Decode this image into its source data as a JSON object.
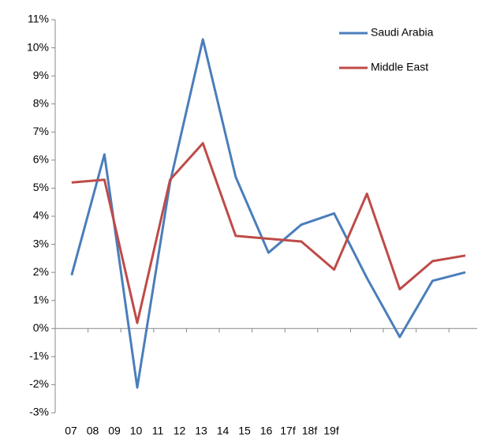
{
  "chart_data": {
    "type": "line",
    "categories": [
      "07",
      "08",
      "09",
      "10",
      "11",
      "12",
      "13",
      "14",
      "15",
      "16",
      "17f",
      "18f",
      "19f"
    ],
    "series": [
      {
        "name": "Saudi Arabia",
        "color": "#4a7ebb",
        "values": [
          1.9,
          6.2,
          -2.1,
          5.2,
          10.3,
          5.4,
          2.7,
          3.7,
          4.1,
          1.8,
          -0.3,
          1.7,
          2.0
        ]
      },
      {
        "name": "Middle East",
        "color": "#be4b48",
        "values": [
          5.2,
          5.3,
          0.2,
          5.3,
          6.6,
          3.3,
          3.2,
          3.1,
          2.1,
          4.8,
          1.4,
          2.4,
          2.6
        ]
      }
    ],
    "ylim": [
      -3,
      11
    ],
    "yticks": [
      {
        "value": -3,
        "label": "-3%"
      },
      {
        "value": -2,
        "label": "-2%"
      },
      {
        "value": -1,
        "label": "-1%"
      },
      {
        "value": 0,
        "label": "0%"
      },
      {
        "value": 1,
        "label": "1%"
      },
      {
        "value": 2,
        "label": "2%"
      },
      {
        "value": 3,
        "label": "3%"
      },
      {
        "value": 4,
        "label": "4%"
      },
      {
        "value": 5,
        "label": "5%"
      },
      {
        "value": 6,
        "label": "6%"
      },
      {
        "value": 7,
        "label": "7%"
      },
      {
        "value": 8,
        "label": "8%"
      },
      {
        "value": 9,
        "label": "9%"
      },
      {
        "value": 10,
        "label": "10%"
      },
      {
        "value": 11,
        "label": "11%"
      }
    ],
    "grid": false,
    "legend": "top-right"
  }
}
